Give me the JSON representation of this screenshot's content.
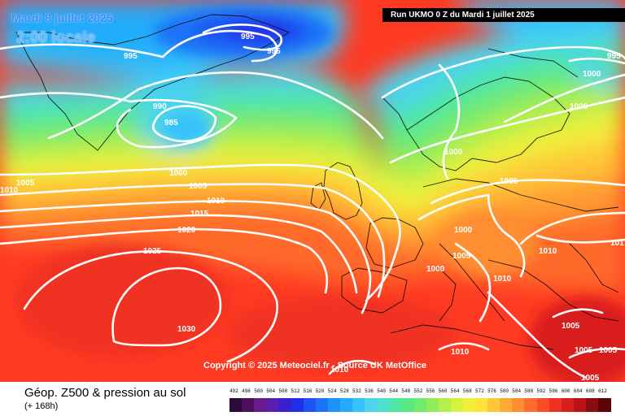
{
  "header": {
    "valid_date": "Mardi 8 juillet 2025",
    "local_time": "2:00 locale",
    "run_info": "Run UKMO 0 Z du Mardi 1 juillet 2025"
  },
  "map": {
    "copyright": "Copyright © 2025 Meteociel.fr - Source UK MetOffice",
    "pressure_labels": [
      {
        "id": "p1",
        "text": "995"
      },
      {
        "id": "p2",
        "text": "995"
      },
      {
        "id": "p3",
        "text": "995"
      },
      {
        "id": "p4",
        "text": "990"
      },
      {
        "id": "p5",
        "text": "985"
      },
      {
        "id": "p6",
        "text": "995"
      },
      {
        "id": "p7",
        "text": "1000"
      },
      {
        "id": "p8",
        "text": "1000"
      },
      {
        "id": "p9",
        "text": "1000"
      },
      {
        "id": "p10",
        "text": "1005"
      },
      {
        "id": "p11",
        "text": "1010"
      },
      {
        "id": "p12",
        "text": "1000"
      },
      {
        "id": "p13",
        "text": "1005"
      },
      {
        "id": "p14",
        "text": "1010"
      },
      {
        "id": "p15",
        "text": "1015"
      },
      {
        "id": "p16",
        "text": "1020"
      },
      {
        "id": "p17",
        "text": "1025"
      },
      {
        "id": "p18",
        "text": "1030"
      },
      {
        "id": "p19",
        "text": "1000"
      },
      {
        "id": "p20",
        "text": "1005"
      },
      {
        "id": "p21",
        "text": "1000"
      },
      {
        "id": "p22",
        "text": "1005"
      },
      {
        "id": "p23",
        "text": "1010"
      },
      {
        "id": "p24",
        "text": "1010"
      },
      {
        "id": "p25",
        "text": "1010"
      },
      {
        "id": "p26",
        "text": "1005"
      },
      {
        "id": "p27",
        "text": "1005"
      },
      {
        "id": "p28",
        "text": "1005"
      },
      {
        "id": "p29",
        "text": "1010"
      },
      {
        "id": "p30",
        "text": "101"
      },
      {
        "id": "p31",
        "text": "1005"
      }
    ]
  },
  "footer": {
    "title": "Géop. Z500 & pression au sol",
    "subtitle": "(+ 168h)"
  },
  "legend": {
    "values": [
      "492",
      "496",
      "500",
      "504",
      "508",
      "512",
      "516",
      "520",
      "524",
      "528",
      "532",
      "536",
      "540",
      "544",
      "548",
      "552",
      "556",
      "560",
      "564",
      "568",
      "572",
      "576",
      "580",
      "584",
      "588",
      "592",
      "596",
      "600",
      "604",
      "608",
      "612"
    ],
    "colors": [
      "#2a0a3a",
      "#4b0f5e",
      "#6a1a8a",
      "#5a1fb0",
      "#3a1fd0",
      "#2030e8",
      "#1e52f2",
      "#1e72f7",
      "#1d92fa",
      "#22acfb",
      "#36c2fa",
      "#4cd3ee",
      "#4fe0cc",
      "#4ee6a5",
      "#5ae883",
      "#72ea6c",
      "#92ec5a",
      "#b4ef4a",
      "#d5f23c",
      "#f0f03a",
      "#ffe23a",
      "#ffc637",
      "#ffaa35",
      "#ff8d32",
      "#ff6c2c",
      "#fa4c26",
      "#f03022",
      "#d91f1d",
      "#b81318",
      "#8c0b12",
      "#5a040a"
    ]
  }
}
